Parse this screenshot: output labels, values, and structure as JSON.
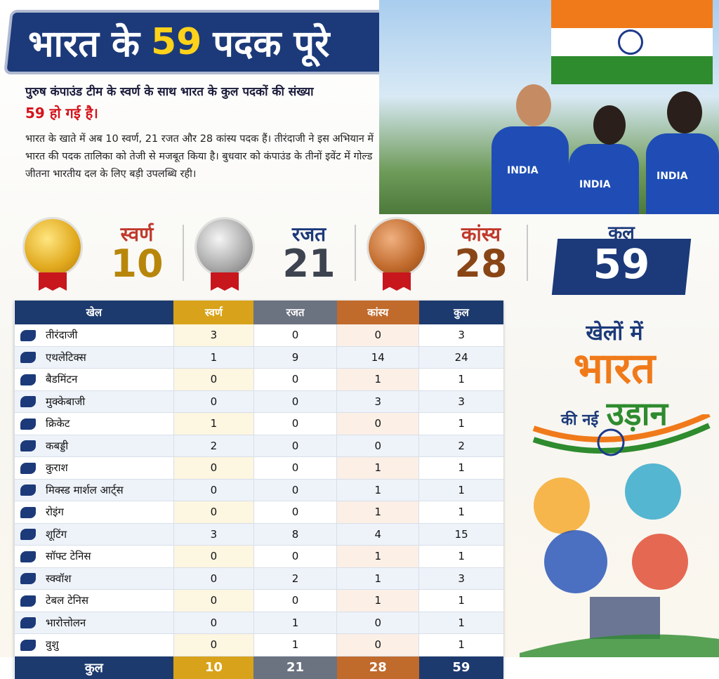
{
  "header": {
    "title_parts": [
      "भारत के",
      "59",
      "पदक पूरे"
    ]
  },
  "lead": {
    "text": "पुरुष कंपाउंड टीम के स्वर्ण के साथ भारत के कुल पदकों की संख्या",
    "highlight": "59 हो गई है।"
  },
  "body": "भारत के खाते में अब 10 स्वर्ण, 21 रजत और 28 कांस्य पदक हैं। तीरंदाजी ने इस अभियान में भारत की पदक तालिका को तेजी से मजबूत किया है। बुधवार को कंपाउंड के तीनों इवेंट में गोल्ड जीतना भारतीय दल के लिए बड़ी उपलब्धि रही।",
  "photo_labels": [
    "INDIA",
    "INDIA",
    "INDIA"
  ],
  "summary": [
    {
      "label": "स्वर्ण",
      "count": 10
    },
    {
      "label": "रजत",
      "count": 21
    },
    {
      "label": "कांस्य",
      "count": 28
    },
    {
      "label": "कुल",
      "count": 59
    }
  ],
  "table": {
    "headers": [
      "खेल",
      "स्वर्ण",
      "रजत",
      "कांस्य",
      "कुल"
    ],
    "rows": [
      [
        "तीरंदाजी",
        3,
        0,
        0,
        3
      ],
      [
        "एथलेटिक्स",
        1,
        9,
        14,
        24
      ],
      [
        "बैडमिंटन",
        0,
        0,
        1,
        1
      ],
      [
        "मुक्केबाजी",
        0,
        0,
        3,
        3
      ],
      [
        "क्रिकेट",
        1,
        0,
        0,
        1
      ],
      [
        "कबड्डी",
        2,
        0,
        0,
        2
      ],
      [
        "कुराश",
        0,
        0,
        1,
        1
      ],
      [
        "मिक्स्ड मार्शल आर्ट्स",
        0,
        0,
        1,
        1
      ],
      [
        "रोइंग",
        0,
        0,
        1,
        1
      ],
      [
        "शूटिंग",
        3,
        8,
        4,
        15
      ],
      [
        "सॉफ्ट टेनिस",
        0,
        0,
        1,
        1
      ],
      [
        "स्क्वॉश",
        0,
        2,
        1,
        3
      ],
      [
        "टेबल टेनिस",
        0,
        0,
        1,
        1
      ],
      [
        "भारोत्तोलन",
        0,
        1,
        0,
        1
      ],
      [
        "वुशु",
        0,
        1,
        0,
        1
      ]
    ],
    "total": [
      "कुल",
      10,
      21,
      28,
      59
    ]
  },
  "slogan": [
    "खेलों में",
    "भारत",
    "की नई",
    "उड़ान"
  ]
}
